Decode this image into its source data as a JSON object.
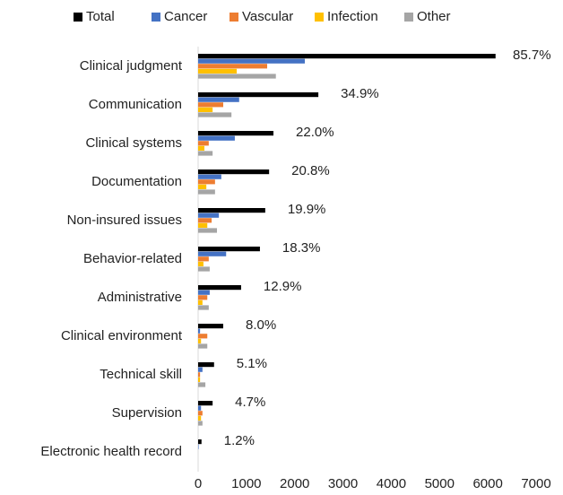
{
  "chart_data": {
    "type": "hbar",
    "categories": [
      "Clinical judgment",
      "Communication",
      "Clinical systems",
      "Documentation",
      "Non-insured issues",
      "Behavior-related",
      "Administrative",
      "Clinical environment",
      "Technical skill",
      "Supervision",
      "Electronic health record"
    ],
    "series": [
      {
        "name": "Total",
        "color": "#000000",
        "values": [
          6160,
          2490,
          1560,
          1470,
          1390,
          1280,
          890,
          520,
          330,
          300,
          70
        ]
      },
      {
        "name": "Cancer",
        "color": "#4472c4",
        "values": [
          2210,
          850,
          760,
          480,
          430,
          580,
          240,
          40,
          90,
          60,
          10
        ]
      },
      {
        "name": "Vascular",
        "color": "#ed7d31",
        "values": [
          1430,
          520,
          220,
          350,
          280,
          220,
          190,
          190,
          40,
          90,
          0
        ]
      },
      {
        "name": "Infection",
        "color": "#ffc000",
        "values": [
          800,
          300,
          130,
          170,
          190,
          110,
          90,
          60,
          40,
          60,
          0
        ]
      },
      {
        "name": "Other",
        "color": "#a5a5a5",
        "values": [
          1610,
          690,
          300,
          350,
          390,
          240,
          220,
          190,
          150,
          90,
          0
        ]
      }
    ],
    "annotations": [
      "85.7%",
      "34.9%",
      "22.0%",
      "20.8%",
      "19.9%",
      "18.3%",
      "12.9%",
      "8.0%",
      "5.1%",
      "4.7%",
      "1.2%"
    ],
    "xlim": [
      0,
      7000
    ],
    "xticks": [
      0,
      1000,
      2000,
      3000,
      4000,
      5000,
      6000,
      7000
    ],
    "legend": "top"
  }
}
